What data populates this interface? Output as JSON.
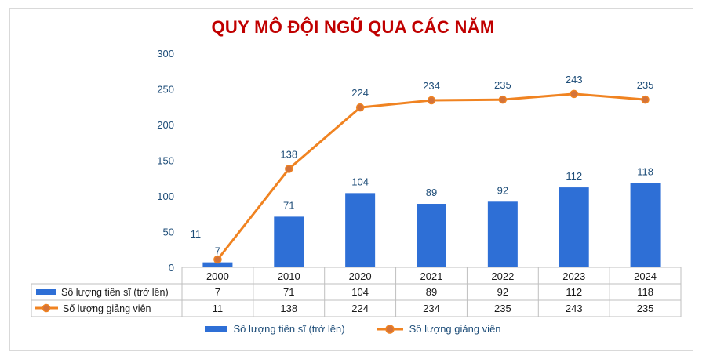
{
  "chart_data": {
    "type": "bar+line",
    "title": "QUY MÔ ĐỘI NGŨ QUA CÁC NĂM",
    "categories": [
      "2000",
      "2010",
      "2020",
      "2021",
      "2022",
      "2023",
      "2024"
    ],
    "ylim": [
      0,
      300
    ],
    "yticks": [
      "0",
      "50",
      "100",
      "150",
      "200",
      "250",
      "300"
    ],
    "series": [
      {
        "name": "Số lượng tiến sĩ (trở lên)",
        "kind": "bar",
        "color": "#2e6fd6",
        "values": [
          7,
          71,
          104,
          89,
          92,
          112,
          118
        ]
      },
      {
        "name": "Số lượng giảng viên",
        "kind": "line",
        "color": "#f08321",
        "marker_fill": "#d3733a",
        "values": [
          11,
          138,
          224,
          234,
          235,
          243,
          235
        ]
      }
    ],
    "grid": false,
    "legend_position": "bottom",
    "data_table": true
  }
}
